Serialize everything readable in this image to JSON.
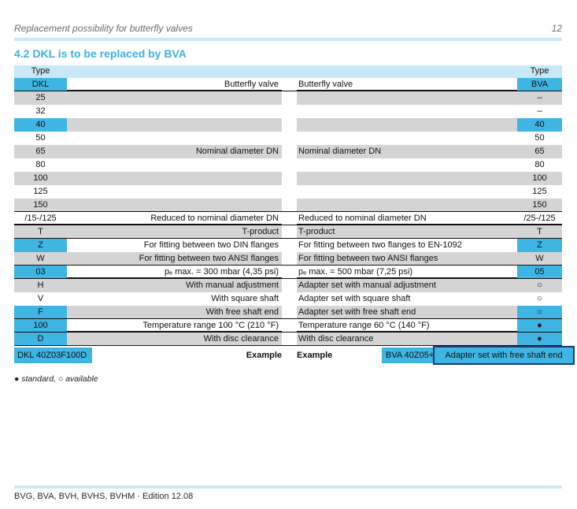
{
  "header": {
    "title": "Replacement possibility for butterfly valves",
    "page_number": "12"
  },
  "section_title": "4.2 DKL is to be replaced by BVA",
  "table": {
    "type_label_left": "Type",
    "type_label_right": "Type",
    "head": {
      "dkl": "DKL",
      "desc_dkl": "Butterfly valve",
      "desc_bva": "Butterfly valve",
      "bva": "BVA"
    },
    "rows": [
      {
        "dkl": "25",
        "desc_dkl": "",
        "desc_bva": "",
        "bva": "–",
        "shade": "gray",
        "dkl_cyan": false,
        "bva_cyan": false,
        "line": false
      },
      {
        "dkl": "32",
        "desc_dkl": "",
        "desc_bva": "",
        "bva": "–",
        "shade": "white",
        "dkl_cyan": false,
        "bva_cyan": false,
        "line": false
      },
      {
        "dkl": "40",
        "desc_dkl": "",
        "desc_bva": "",
        "bva": "40",
        "shade": "gray",
        "dkl_cyan": true,
        "bva_cyan": true,
        "line": false
      },
      {
        "dkl": "50",
        "desc_dkl": "",
        "desc_bva": "",
        "bva": "50",
        "shade": "white",
        "dkl_cyan": false,
        "bva_cyan": false,
        "line": false
      },
      {
        "dkl": "65",
        "desc_dkl": "Nominal diameter DN",
        "desc_bva": "Nominal diameter DN",
        "bva": "65",
        "shade": "gray",
        "dkl_cyan": false,
        "bva_cyan": false,
        "line": false
      },
      {
        "dkl": "80",
        "desc_dkl": "",
        "desc_bva": "",
        "bva": "80",
        "shade": "white",
        "dkl_cyan": false,
        "bva_cyan": false,
        "line": false
      },
      {
        "dkl": "100",
        "desc_dkl": "",
        "desc_bva": "",
        "bva": "100",
        "shade": "gray",
        "dkl_cyan": false,
        "bva_cyan": false,
        "line": false
      },
      {
        "dkl": "125",
        "desc_dkl": "",
        "desc_bva": "",
        "bva": "125",
        "shade": "white",
        "dkl_cyan": false,
        "bva_cyan": false,
        "line": false
      },
      {
        "dkl": "150",
        "desc_dkl": "",
        "desc_bva": "",
        "bva": "150",
        "shade": "gray",
        "dkl_cyan": false,
        "bva_cyan": false,
        "line": true
      },
      {
        "dkl": "/15-/125",
        "desc_dkl": "Reduced to nominal diameter DN",
        "desc_bva": "Reduced to nominal diameter DN",
        "bva": "/25-/125",
        "shade": "white",
        "dkl_cyan": false,
        "bva_cyan": false,
        "line": true
      },
      {
        "dkl": "T",
        "desc_dkl": "T-product",
        "desc_bva": "T-product",
        "bva": "T",
        "shade": "gray",
        "dkl_cyan": false,
        "bva_cyan": false,
        "line": true
      },
      {
        "dkl": "Z",
        "desc_dkl": "For fitting between two DIN flanges",
        "desc_bva": "For fitting between two flanges to EN-1092",
        "bva": "Z",
        "shade": "white",
        "dkl_cyan": true,
        "bva_cyan": true,
        "line": false
      },
      {
        "dkl": "W",
        "desc_dkl": "For fitting between two ANSI flanges",
        "desc_bva": "For fitting between two ANSI flanges",
        "bva": "W",
        "shade": "gray",
        "dkl_cyan": false,
        "bva_cyan": false,
        "line": true
      },
      {
        "dkl": "03",
        "desc_dkl": "pₑ max. = 300 mbar (4,35 psi)",
        "desc_bva": "pₑ max. = 500 mbar (7,25 psi)",
        "bva": "05",
        "shade": "white",
        "dkl_cyan": true,
        "bva_cyan": true,
        "line": true
      },
      {
        "dkl": "H",
        "desc_dkl": "With manual adjustment",
        "desc_bva": "Adapter set with manual adjustment",
        "bva": "○",
        "shade": "gray",
        "dkl_cyan": false,
        "bva_cyan": false,
        "line": false
      },
      {
        "dkl": "V",
        "desc_dkl": "With square shaft",
        "desc_bva": "Adapter set with square shaft",
        "bva": "○",
        "shade": "white",
        "dkl_cyan": false,
        "bva_cyan": false,
        "line": false
      },
      {
        "dkl": "F",
        "desc_dkl": "With free shaft end",
        "desc_bva": "Adapter set with free shaft end",
        "bva": "○",
        "shade": "gray",
        "dkl_cyan": true,
        "bva_cyan": true,
        "line": true
      },
      {
        "dkl": "100",
        "desc_dkl": "Temperature range 100 °C (210 °F)",
        "desc_bva": "Temperature range 60 °C (140 °F)",
        "bva": "●",
        "shade": "white",
        "dkl_cyan": true,
        "bva_cyan": true,
        "line": true
      },
      {
        "dkl": "D",
        "desc_dkl": "With disc clearance",
        "desc_bva": "With disc clearance",
        "bva": "●",
        "shade": "gray",
        "dkl_cyan": true,
        "bva_cyan": true,
        "line": true
      }
    ],
    "example": {
      "dkl_code": "DKL 40Z03F100D",
      "label_dkl": "Example",
      "label_bva": "Example",
      "bva_code": "BVA 40Z05+",
      "adapter_note": "Adapter set with free shaft end"
    }
  },
  "legend": "● standard, ○ available",
  "footer": "BVG, BVA, BVH, BVHS, BVHM · Edition 12.08",
  "colors": {
    "cyan": "#3fb5e3",
    "light_cyan": "#c8e8f6",
    "row_gray": "#d4d4d4",
    "navy_border": "#1c3a6e"
  }
}
